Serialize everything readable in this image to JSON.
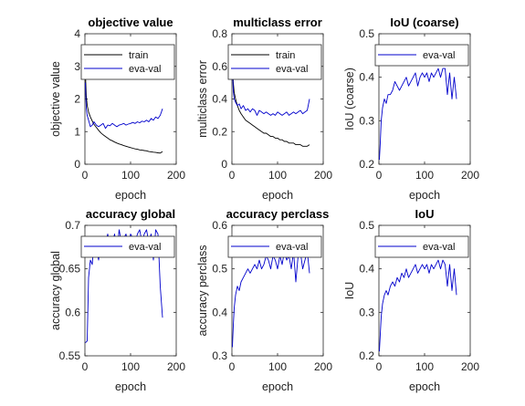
{
  "chart_data": [
    {
      "type": "line",
      "title": "objective value",
      "xlabel": "epoch",
      "ylabel": "objective value",
      "xlim": [
        0,
        200
      ],
      "ylim": [
        0,
        4
      ],
      "xticks": [
        "0",
        "100",
        "200"
      ],
      "yticks": [
        "0",
        "1",
        "2",
        "3",
        "4"
      ],
      "legend": "top-right",
      "series": [
        {
          "name": "train",
          "color": "#000000",
          "x": [
            1,
            3,
            5,
            8,
            12,
            16,
            20,
            25,
            30,
            35,
            40,
            45,
            50,
            55,
            60,
            65,
            70,
            75,
            80,
            85,
            90,
            95,
            100,
            105,
            110,
            115,
            120,
            125,
            130,
            135,
            140,
            145,
            150,
            155,
            160,
            165,
            170
          ],
          "y": [
            2.8,
            2.1,
            1.8,
            1.6,
            1.45,
            1.33,
            1.22,
            1.13,
            1.04,
            0.96,
            0.9,
            0.85,
            0.8,
            0.75,
            0.72,
            0.68,
            0.65,
            0.62,
            0.6,
            0.57,
            0.55,
            0.53,
            0.51,
            0.49,
            0.47,
            0.46,
            0.44,
            0.43,
            0.42,
            0.41,
            0.39,
            0.38,
            0.37,
            0.36,
            0.35,
            0.34,
            0.39
          ]
        },
        {
          "name": "eva-val",
          "color": "#0000cc",
          "x": [
            1,
            3,
            5,
            8,
            12,
            16,
            20,
            25,
            30,
            35,
            40,
            45,
            50,
            55,
            60,
            65,
            70,
            75,
            80,
            85,
            90,
            95,
            100,
            105,
            110,
            115,
            120,
            125,
            130,
            135,
            140,
            145,
            150,
            155,
            160,
            165,
            170
          ],
          "y": [
            2.5,
            1.7,
            1.5,
            1.35,
            1.15,
            1.2,
            1.3,
            1.2,
            1.15,
            1.2,
            1.25,
            1.1,
            1.2,
            1.18,
            1.25,
            1.2,
            1.15,
            1.2,
            1.22,
            1.25,
            1.2,
            1.23,
            1.25,
            1.28,
            1.25,
            1.3,
            1.27,
            1.32,
            1.3,
            1.35,
            1.3,
            1.4,
            1.35,
            1.45,
            1.4,
            1.5,
            1.7
          ]
        }
      ]
    },
    {
      "type": "line",
      "title": "multiclass error",
      "xlabel": "epoch",
      "ylabel": "multiclass error",
      "xlim": [
        0,
        200
      ],
      "ylim": [
        0,
        0.8
      ],
      "xticks": [
        "0",
        "100",
        "200"
      ],
      "yticks": [
        "0",
        "0.2",
        "0.4",
        "0.6",
        "0.8"
      ],
      "legend": "top-right",
      "series": [
        {
          "name": "train",
          "color": "#000000",
          "x": [
            1,
            3,
            5,
            8,
            12,
            16,
            20,
            25,
            30,
            35,
            40,
            45,
            50,
            55,
            60,
            65,
            70,
            75,
            80,
            85,
            90,
            95,
            100,
            105,
            110,
            115,
            120,
            125,
            130,
            135,
            140,
            145,
            150,
            155,
            160,
            165,
            170
          ],
          "y": [
            0.62,
            0.5,
            0.44,
            0.4,
            0.36,
            0.33,
            0.31,
            0.29,
            0.27,
            0.26,
            0.25,
            0.24,
            0.23,
            0.22,
            0.21,
            0.2,
            0.19,
            0.19,
            0.18,
            0.17,
            0.17,
            0.16,
            0.16,
            0.15,
            0.15,
            0.14,
            0.14,
            0.13,
            0.13,
            0.13,
            0.12,
            0.12,
            0.12,
            0.11,
            0.11,
            0.11,
            0.12
          ]
        },
        {
          "name": "eva-val",
          "color": "#0000cc",
          "x": [
            1,
            3,
            5,
            8,
            12,
            16,
            20,
            25,
            30,
            35,
            40,
            45,
            50,
            55,
            60,
            65,
            70,
            75,
            80,
            85,
            90,
            95,
            100,
            105,
            110,
            115,
            120,
            125,
            130,
            135,
            140,
            145,
            150,
            155,
            160,
            165,
            170
          ],
          "y": [
            0.6,
            0.45,
            0.4,
            0.38,
            0.36,
            0.37,
            0.34,
            0.36,
            0.33,
            0.34,
            0.32,
            0.34,
            0.33,
            0.3,
            0.33,
            0.32,
            0.31,
            0.32,
            0.31,
            0.3,
            0.31,
            0.3,
            0.32,
            0.31,
            0.3,
            0.31,
            0.32,
            0.3,
            0.31,
            0.32,
            0.31,
            0.32,
            0.33,
            0.31,
            0.32,
            0.33,
            0.4
          ]
        }
      ]
    },
    {
      "type": "line",
      "title": "IoU (coarse)",
      "xlabel": "epoch",
      "ylabel": "IoU (coarse)",
      "xlim": [
        0,
        200
      ],
      "ylim": [
        0.2,
        0.5
      ],
      "xticks": [
        "0",
        "100",
        "200"
      ],
      "yticks": [
        "0.2",
        "0.3",
        "0.4",
        "0.5"
      ],
      "legend": "top-right",
      "series": [
        {
          "name": "eva-val",
          "color": "#0000cc",
          "x": [
            1,
            3,
            5,
            8,
            12,
            16,
            20,
            25,
            30,
            35,
            40,
            45,
            50,
            55,
            60,
            65,
            70,
            75,
            80,
            85,
            90,
            95,
            100,
            105,
            110,
            115,
            120,
            125,
            130,
            135,
            140,
            145,
            150,
            155,
            160,
            165,
            170
          ],
          "y": [
            0.21,
            0.25,
            0.3,
            0.33,
            0.35,
            0.34,
            0.36,
            0.36,
            0.37,
            0.39,
            0.38,
            0.37,
            0.38,
            0.39,
            0.4,
            0.38,
            0.39,
            0.4,
            0.41,
            0.38,
            0.4,
            0.41,
            0.4,
            0.41,
            0.39,
            0.41,
            0.4,
            0.41,
            0.42,
            0.4,
            0.42,
            0.42,
            0.36,
            0.41,
            0.35,
            0.4,
            0.35
          ]
        }
      ]
    },
    {
      "type": "line",
      "title": "accuracy global",
      "xlabel": "epoch",
      "ylabel": "accuracy global",
      "xlim": [
        0,
        200
      ],
      "ylim": [
        0.55,
        0.7
      ],
      "xticks": [
        "0",
        "100",
        "200"
      ],
      "yticks": [
        "0.55",
        "0.6",
        "0.65",
        "0.7"
      ],
      "legend": "top-right",
      "series": [
        {
          "name": "eva-val",
          "color": "#0000cc",
          "x": [
            1,
            3,
            5,
            8,
            12,
            16,
            20,
            25,
            30,
            35,
            40,
            45,
            50,
            55,
            60,
            65,
            70,
            75,
            80,
            85,
            90,
            95,
            100,
            105,
            110,
            115,
            120,
            125,
            130,
            135,
            140,
            145,
            150,
            155,
            160,
            165,
            170
          ],
          "y": [
            0.565,
            0.566,
            0.567,
            0.64,
            0.66,
            0.655,
            0.68,
            0.675,
            0.66,
            0.685,
            0.67,
            0.68,
            0.69,
            0.675,
            0.68,
            0.69,
            0.67,
            0.695,
            0.68,
            0.685,
            0.69,
            0.675,
            0.69,
            0.685,
            0.68,
            0.69,
            0.695,
            0.68,
            0.69,
            0.695,
            0.68,
            0.69,
            0.66,
            0.695,
            0.69,
            0.63,
            0.594
          ]
        }
      ]
    },
    {
      "type": "line",
      "title": "accuracy perclass",
      "xlabel": "epoch",
      "ylabel": "accuracy perclass",
      "xlim": [
        0,
        200
      ],
      "ylim": [
        0.3,
        0.6
      ],
      "xticks": [
        "0",
        "100",
        "200"
      ],
      "yticks": [
        "0.3",
        "0.4",
        "0.5",
        "0.6"
      ],
      "legend": "top-right",
      "series": [
        {
          "name": "eva-val",
          "color": "#0000cc",
          "x": [
            1,
            3,
            5,
            8,
            12,
            16,
            20,
            25,
            30,
            35,
            40,
            45,
            50,
            55,
            60,
            65,
            70,
            75,
            80,
            85,
            90,
            95,
            100,
            105,
            110,
            115,
            120,
            125,
            130,
            135,
            140,
            145,
            150,
            155,
            160,
            165,
            170
          ],
          "y": [
            0.32,
            0.37,
            0.41,
            0.44,
            0.46,
            0.45,
            0.47,
            0.48,
            0.49,
            0.5,
            0.49,
            0.5,
            0.51,
            0.5,
            0.52,
            0.5,
            0.51,
            0.53,
            0.52,
            0.5,
            0.53,
            0.52,
            0.5,
            0.53,
            0.51,
            0.54,
            0.52,
            0.53,
            0.5,
            0.54,
            0.47,
            0.53,
            0.54,
            0.5,
            0.52,
            0.54,
            0.49
          ]
        }
      ]
    },
    {
      "type": "line",
      "title": "IoU",
      "xlabel": "epoch",
      "ylabel": "IoU",
      "xlim": [
        0,
        200
      ],
      "ylim": [
        0.2,
        0.5
      ],
      "xticks": [
        "0",
        "100",
        "200"
      ],
      "yticks": [
        "0.2",
        "0.3",
        "0.4",
        "0.5"
      ],
      "legend": "top-right",
      "series": [
        {
          "name": "eva-val",
          "color": "#0000cc",
          "x": [
            1,
            3,
            5,
            8,
            12,
            16,
            20,
            25,
            30,
            35,
            40,
            45,
            50,
            55,
            60,
            65,
            70,
            75,
            80,
            85,
            90,
            95,
            100,
            105,
            110,
            115,
            120,
            125,
            130,
            135,
            140,
            145,
            150,
            155,
            160,
            165,
            170
          ],
          "y": [
            0.21,
            0.25,
            0.29,
            0.32,
            0.34,
            0.35,
            0.34,
            0.36,
            0.37,
            0.36,
            0.38,
            0.37,
            0.39,
            0.38,
            0.4,
            0.38,
            0.39,
            0.4,
            0.41,
            0.39,
            0.4,
            0.41,
            0.4,
            0.41,
            0.39,
            0.41,
            0.4,
            0.41,
            0.42,
            0.4,
            0.42,
            0.41,
            0.36,
            0.41,
            0.35,
            0.4,
            0.34
          ]
        }
      ]
    }
  ]
}
